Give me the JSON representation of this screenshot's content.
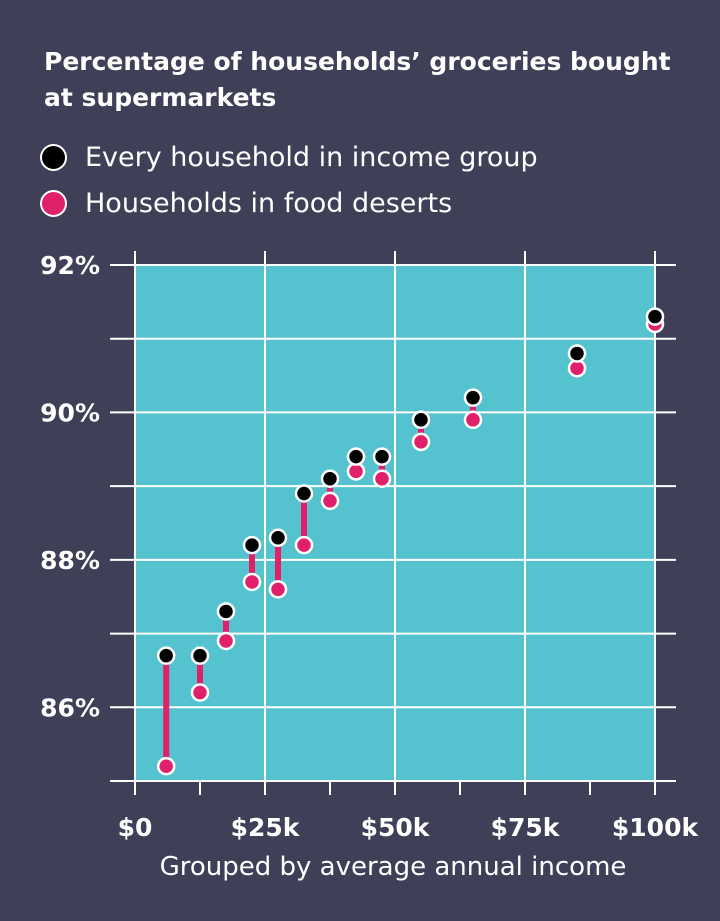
{
  "chart_data": {
    "type": "scatter",
    "title": "Percentage of households’ groceries bought at supermarkets",
    "xlabel": "Grouped by average annual income",
    "ylabel": "",
    "xlim": [
      0,
      100000
    ],
    "ylim": [
      85,
      92
    ],
    "x_ticks": [
      {
        "value": 0,
        "label": "$0"
      },
      {
        "value": 25000,
        "label": "$25k"
      },
      {
        "value": 50000,
        "label": "$50k"
      },
      {
        "value": 75000,
        "label": "$75k"
      },
      {
        "value": 100000,
        "label": "$100k"
      }
    ],
    "y_ticks": [
      {
        "value": 86,
        "label": "86%"
      },
      {
        "value": 88,
        "label": "88%"
      },
      {
        "value": 90,
        "label": "90%"
      },
      {
        "value": 92,
        "label": "92%"
      }
    ],
    "grid": true,
    "legend_position": "top-left",
    "x": [
      6000,
      12500,
      17500,
      22500,
      27500,
      32500,
      37500,
      42500,
      47500,
      55000,
      65000,
      85000,
      100000
    ],
    "series": [
      {
        "name": "Every household in income group",
        "color": "#000000",
        "values": [
          86.7,
          86.7,
          87.3,
          88.2,
          88.3,
          88.9,
          89.1,
          89.4,
          89.4,
          89.9,
          90.2,
          90.8,
          91.3
        ]
      },
      {
        "name": "Households in food deserts",
        "color": "#e0206b",
        "values": [
          85.2,
          86.2,
          86.9,
          87.7,
          87.6,
          88.2,
          88.8,
          89.2,
          89.1,
          89.6,
          89.9,
          90.6,
          91.2
        ]
      }
    ],
    "colors": {
      "background": "#3f3f58",
      "plot_area": "#55c2d0",
      "grid": "#ffffff",
      "connector": "#e0206b"
    }
  }
}
